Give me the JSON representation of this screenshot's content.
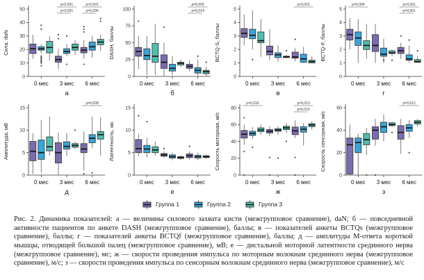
{
  "figure": {
    "caption": "Рис. 2. Динамика показателей: а — величины силового захвата кисти (межгрупповое сравнение), daN; б — повседневной активности пациентов по анкете DASH (межгрупповое сравнение), баллы; в — показателей анкеты BCTQs (межгрупповое сравнение), баллы; г — показателей анкеты BCTQf (межгрупповое сравнение), баллы; д — амплитуды М-ответа короткой мышцы, отводящей большой палец (межгрупповое сравнение), мВ; е — дистальной моторной латентности срединного нерва (межгрупповое сравнение), мс; ж — скорости проведения импульса по моторным волокнам срединного нерва (межгрупповое сравнение), м/с; з — скорости проведения импульса по сенсорным волокнам срединного нерва (межгрупповое сравнение), м/с"
  },
  "legend": {
    "items": [
      {
        "label": "Группа 1",
        "color": "#7b6bb2"
      },
      {
        "label": "Группа 2",
        "color": "#35a7db"
      },
      {
        "label": "Группа 3",
        "color": "#4cbfae"
      }
    ]
  },
  "chart_data": {
    "type": "boxplot",
    "categories": [
      "0 мес",
      "3 мес",
      "6 мес"
    ],
    "groups": [
      "Группа 1",
      "Группа 2",
      "Группа 3"
    ],
    "group_colors": [
      "#7b6bb2",
      "#35a7db",
      "#4cbfae"
    ],
    "legend_position": "bottom",
    "grid": false,
    "panels": [
      {
        "letter": "а",
        "ylabel": "Сила, daN",
        "ylim": [
          0,
          50
        ],
        "yticks": [
          0,
          10,
          20,
          30,
          40,
          50
        ],
        "boxes": [
          [
            {
              "lo": 13,
              "q1": 17,
              "med": 20.5,
              "q3": 24,
              "hi": 31,
              "out": []
            },
            {
              "lo": 17,
              "q1": 19.5,
              "med": 20.5,
              "q3": 22,
              "hi": 24,
              "out": [
                15,
                14,
                13,
                12,
                11,
                10,
                8,
                35,
                38
              ]
            },
            {
              "lo": 12,
              "q1": 17.5,
              "med": 21.5,
              "q3": 26,
              "hi": 30,
              "out": []
            }
          ],
          [
            {
              "lo": 5.5,
              "q1": 10.5,
              "med": 12.5,
              "q3": 15,
              "hi": 20.5,
              "out": [
                28,
                31
              ]
            },
            {
              "lo": 15,
              "q1": 17,
              "med": 18.5,
              "q3": 20.5,
              "hi": 24,
              "out": [
                9,
                30
              ]
            },
            {
              "lo": 16,
              "q1": 19.5,
              "med": 21.5,
              "q3": 24,
              "hi": 27,
              "out": []
            }
          ],
          [
            {
              "lo": 13,
              "q1": 17.5,
              "med": 19.5,
              "q3": 21.5,
              "hi": 27,
              "out": [
                9,
                33,
                35,
                37
              ]
            },
            {
              "lo": 14,
              "q1": 19.5,
              "med": 22,
              "q3": 25.5,
              "hi": 30,
              "out": []
            },
            {
              "lo": 19,
              "q1": 23.5,
              "med": 25.5,
              "q3": 27.5,
              "hi": 31,
              "out": [
                41,
                43
              ]
            }
          ]
        ],
        "annotations": [
          {
            "tp": 1,
            "labels": [
              "p<0,001",
              "p<0,001"
            ]
          },
          {
            "tp": 2,
            "labels": [
              "p<0,001",
              "p=0,006"
            ]
          }
        ]
      },
      {
        "letter": "б",
        "ylabel": "DASH, баллы",
        "ylim": [
          0,
          100
        ],
        "yticks": [
          0,
          25,
          50,
          75,
          100
        ],
        "boxes": [
          [
            {
              "lo": 11,
              "q1": 30,
              "med": 37,
              "q3": 43,
              "hi": 60,
              "out": [
                82
              ]
            },
            {
              "lo": 2,
              "q1": 25,
              "med": 31,
              "q3": 41,
              "hi": 60,
              "out": []
            },
            {
              "lo": 2,
              "q1": 21,
              "med": 30,
              "q3": 49,
              "hi": 78,
              "out": []
            }
          ],
          [
            {
              "lo": 0,
              "q1": 12,
              "med": 21,
              "q3": 32,
              "hi": 50,
              "out": [
                73
              ]
            },
            {
              "lo": 2,
              "q1": 8,
              "med": 12,
              "q3": 18,
              "hi": 30,
              "out": []
            },
            {
              "lo": 14,
              "q1": 17,
              "med": 19.5,
              "q3": 21,
              "hi": 25,
              "out": []
            }
          ],
          [
            {
              "lo": 8,
              "q1": 12,
              "med": 15,
              "q3": 18,
              "hi": 24,
              "out": []
            },
            {
              "lo": 0,
              "q1": 5,
              "med": 9,
              "q3": 13,
              "hi": 25,
              "out": [
                30
              ]
            },
            {
              "lo": 0,
              "q1": 4,
              "med": 7,
              "q3": 9,
              "hi": 14,
              "out": [
                21
              ]
            }
          ]
        ],
        "annotations": [
          {
            "tp": 2,
            "labels": [
              "p=0,005",
              "p=0,014"
            ]
          }
        ]
      },
      {
        "letter": "в",
        "ylabel": "BCTQ-S, баллы",
        "ylim": [
          0,
          5
        ],
        "yticks": [
          0,
          1,
          2,
          3,
          4,
          5
        ],
        "boxes": [
          [
            {
              "lo": 2.3,
              "q1": 2.9,
              "med": 3.2,
              "q3": 3.55,
              "hi": 4.6,
              "out": []
            },
            {
              "lo": 2.0,
              "q1": 2.8,
              "med": 3.05,
              "q3": 3.5,
              "hi": 4.9,
              "out": [
                1.25
              ]
            },
            {
              "lo": 1.45,
              "q1": 2.5,
              "med": 2.65,
              "q3": 3.3,
              "hi": 4.25,
              "out": []
            }
          ],
          [
            {
              "lo": 1.2,
              "q1": 1.6,
              "med": 1.85,
              "q3": 2.25,
              "hi": 3.5,
              "out": []
            },
            {
              "lo": 1.1,
              "q1": 1.4,
              "med": 1.6,
              "q3": 1.75,
              "hi": 2.3,
              "out": []
            },
            {
              "lo": 1.35,
              "q1": 1.4,
              "med": 1.45,
              "q3": 1.5,
              "hi": 1.6,
              "out": [
                1.9
              ]
            }
          ],
          [
            {
              "lo": 1.1,
              "q1": 1.35,
              "med": 1.45,
              "q3": 1.8,
              "hi": 2.1,
              "out": [
                2.75
              ]
            },
            {
              "lo": 1.0,
              "q1": 1.05,
              "med": 1.3,
              "q3": 1.65,
              "hi": 2.2,
              "out": []
            },
            {
              "lo": 1.0,
              "q1": 1.0,
              "med": 1.1,
              "q3": 1.2,
              "hi": 1.5,
              "out": []
            }
          ]
        ],
        "annotations": [
          {
            "tp": 2,
            "labels": [
              "p<0,001"
            ]
          }
        ]
      },
      {
        "letter": "г",
        "ylabel": "BCTQ-F, баллы",
        "ylim": [
          0,
          5
        ],
        "yticks": [
          0,
          1,
          2,
          3,
          4,
          5
        ],
        "boxes": [
          [
            {
              "lo": 2.0,
              "q1": 2.7,
              "med": 3.1,
              "q3": 3.5,
              "hi": 4.3,
              "out": []
            },
            {
              "lo": 1.0,
              "q1": 2.3,
              "med": 2.85,
              "q3": 3.3,
              "hi": 4.25,
              "out": []
            },
            {
              "lo": 1.3,
              "q1": 2.0,
              "med": 2.3,
              "q3": 2.65,
              "hi": 3.9,
              "out": []
            }
          ],
          [
            {
              "lo": 1.0,
              "q1": 1.85,
              "med": 2.3,
              "q3": 3.1,
              "hi": 3.9,
              "out": []
            },
            {
              "lo": 1.0,
              "q1": 1.5,
              "med": 1.65,
              "q3": 2.1,
              "hi": 2.8,
              "out": [
                1.2
              ]
            },
            {
              "lo": 1.5,
              "q1": 1.7,
              "med": 1.75,
              "q3": 1.9,
              "hi": 2.0,
              "out": [
                1.2
              ]
            }
          ],
          [
            {
              "lo": 1.3,
              "q1": 1.7,
              "med": 1.9,
              "q3": 2.15,
              "hi": 2.5,
              "out": [
                3.0
              ]
            },
            {
              "lo": 1.0,
              "q1": 1.2,
              "med": 1.3,
              "q3": 1.6,
              "hi": 2.3,
              "out": [
                2.7
              ]
            },
            {
              "lo": 1.0,
              "q1": 1.05,
              "med": 1.1,
              "q3": 1.25,
              "hi": 1.5,
              "out": [
                1.9
              ]
            }
          ]
        ],
        "annotations": [
          {
            "tp": 0,
            "labels": [
              "p=0,004"
            ]
          },
          {
            "tp": 2,
            "labels": [
              "p<0,001",
              "p=0,001"
            ]
          }
        ]
      },
      {
        "letter": "д",
        "ylabel": "Амплитуда, мВ",
        "ylim": [
          0,
          15
        ],
        "yticks": [
          0,
          5,
          10,
          15
        ],
        "boxes": [
          [
            {
              "lo": 0.3,
              "q1": 3.2,
              "med": 5.3,
              "q3": 7.5,
              "hi": 9.3,
              "out": []
            },
            {
              "lo": 0.5,
              "q1": 3.5,
              "med": 5.0,
              "q3": 7.8,
              "hi": 12.3,
              "out": []
            },
            {
              "lo": 4.3,
              "q1": 5.4,
              "med": 6.3,
              "q3": 8.5,
              "hi": 13.0,
              "out": []
            }
          ],
          [
            {
              "lo": 0.1,
              "q1": 2.7,
              "med": 5.0,
              "q3": 7.2,
              "hi": 9.5,
              "out": []
            },
            {
              "lo": 4.2,
              "q1": 5.8,
              "med": 6.4,
              "q3": 7.4,
              "hi": 9.4,
              "out": []
            },
            {
              "lo": 5.8,
              "q1": 6.2,
              "med": 6.6,
              "q3": 7.0,
              "hi": 7.4,
              "out": [
                10.0
              ]
            }
          ],
          [
            {
              "lo": 1.0,
              "q1": 5.0,
              "med": 5.8,
              "q3": 7.0,
              "hi": 9.7,
              "out": [
                0.3
              ]
            },
            {
              "lo": 6.0,
              "q1": 7.2,
              "med": 8.2,
              "q3": 9.0,
              "hi": 13.0,
              "out": [
                0.5
              ]
            },
            {
              "lo": 4.3,
              "q1": 8.0,
              "med": 9.0,
              "q3": 9.7,
              "hi": 12.8,
              "out": []
            }
          ]
        ],
        "annotations": [
          {
            "tp": 2,
            "labels": [
              "p=0,008"
            ]
          }
        ]
      },
      {
        "letter": "е",
        "ylabel": "Латентность, мс",
        "ylim": [
          0,
          15
        ],
        "yticks": [
          0,
          5,
          10,
          15
        ],
        "boxes": [
          [
            {
              "lo": 4.2,
              "q1": 5.0,
              "med": 5.9,
              "q3": 7.9,
              "hi": 9.2,
              "out": [
                13.2
              ]
            },
            {
              "lo": 4.0,
              "q1": 5.0,
              "med": 5.8,
              "q3": 6.6,
              "hi": 8.3,
              "out": [
                11.9
              ]
            },
            {
              "lo": 4.3,
              "q1": 5.0,
              "med": 5.6,
              "q3": 6.3,
              "hi": 7.5,
              "out": []
            }
          ],
          [
            {
              "lo": 3.9,
              "q1": 4.2,
              "med": 4.5,
              "q3": 4.8,
              "hi": 5.3,
              "out": [
                5.9
              ]
            },
            {
              "lo": 3.3,
              "q1": 3.8,
              "med": 4.1,
              "q3": 4.5,
              "hi": 5.0,
              "out": []
            },
            {
              "lo": 3.4,
              "q1": 3.7,
              "med": 3.9,
              "q3": 4.1,
              "hi": 4.4,
              "out": []
            }
          ],
          [
            {
              "lo": 3.4,
              "q1": 3.9,
              "med": 4.3,
              "q3": 4.7,
              "hi": 5.3,
              "out": [
                6.4
              ]
            },
            {
              "lo": 3.3,
              "q1": 3.8,
              "med": 4.1,
              "q3": 4.4,
              "hi": 5.0,
              "out": []
            },
            {
              "lo": 3.6,
              "q1": 3.9,
              "med": 4.1,
              "q3": 4.3,
              "hi": 4.6,
              "out": []
            }
          ]
        ],
        "annotations": []
      },
      {
        "letter": "ж",
        "ylabel": "Скорость моторная, м/с",
        "ylim": [
          0,
          80
        ],
        "yticks": [
          0,
          20,
          40,
          60,
          80
        ],
        "boxes": [
          [
            {
              "lo": 36,
              "q1": 44,
              "med": 48.5,
              "q3": 53,
              "hi": 60,
              "out": [
                28,
                68,
                0
              ]
            },
            {
              "lo": 43,
              "q1": 47,
              "med": 49.5,
              "q3": 52,
              "hi": 57,
              "out": [
                33
              ]
            },
            {
              "lo": 48,
              "q1": 51.5,
              "med": 53.5,
              "q3": 56,
              "hi": 60,
              "out": []
            }
          ],
          [
            {
              "lo": 46,
              "q1": 50,
              "med": 52,
              "q3": 54,
              "hi": 58,
              "out": [
                21,
                0
              ]
            },
            {
              "lo": 48,
              "q1": 52,
              "med": 53.5,
              "q3": 55,
              "hi": 58,
              "out": [
                20
              ]
            },
            {
              "lo": 50,
              "q1": 54,
              "med": 56,
              "q3": 58,
              "hi": 62,
              "out": [
                40
              ]
            }
          ],
          [
            {
              "lo": 44,
              "q1": 48,
              "med": 52.5,
              "q3": 57,
              "hi": 65,
              "out": [
                21,
                0
              ]
            },
            {
              "lo": 35,
              "q1": 51,
              "med": 54.5,
              "q3": 57.5,
              "hi": 62,
              "out": []
            },
            {
              "lo": 54,
              "q1": 57.5,
              "med": 59.5,
              "q3": 61,
              "hi": 64,
              "out": []
            }
          ]
        ],
        "annotations": [
          {
            "tp": 0,
            "labels": [
              "p=0,016"
            ]
          },
          {
            "tp": 2,
            "labels": [
              "p=0,013",
              "p=0,010"
            ]
          }
        ]
      },
      {
        "letter": "з",
        "ylabel": "Скорость сенсорная, м/с",
        "ylim": [
          0,
          60
        ],
        "yticks": [
          0,
          20,
          40,
          60
        ],
        "boxes": [
          [
            {
              "lo": 0,
              "q1": 1,
              "med": 27,
              "q3": 33,
              "hi": 45,
              "out": []
            },
            {
              "lo": 0,
              "q1": 20,
              "med": 29,
              "q3": 33,
              "hi": 37,
              "out": []
            },
            {
              "lo": 18,
              "q1": 27,
              "med": 31.5,
              "q3": 37,
              "hi": 42,
              "out": [
                0
              ]
            }
          ],
          [
            {
              "lo": 26,
              "q1": 32,
              "med": 40,
              "q3": 43,
              "hi": 50,
              "out": [
                0
              ]
            },
            {
              "lo": 30,
              "q1": 38,
              "med": 43,
              "q3": 47,
              "hi": 54,
              "out": []
            },
            {
              "lo": 43,
              "q1": 44,
              "med": 45,
              "q3": 46.5,
              "hi": 47.5,
              "out": [
                38
              ]
            }
          ],
          [
            {
              "lo": 19,
              "q1": 32,
              "med": 38,
              "q3": 44,
              "hi": 50,
              "out": []
            },
            {
              "lo": 33,
              "q1": 39,
              "med": 42,
              "q3": 45,
              "hi": 49,
              "out": [
                20
              ]
            },
            {
              "lo": 43,
              "q1": 45.5,
              "med": 47,
              "q3": 48.5,
              "hi": 50,
              "out": []
            }
          ]
        ],
        "annotations": [
          {
            "tp": 2,
            "labels": [
              "p=0,012"
            ]
          }
        ]
      }
    ]
  }
}
